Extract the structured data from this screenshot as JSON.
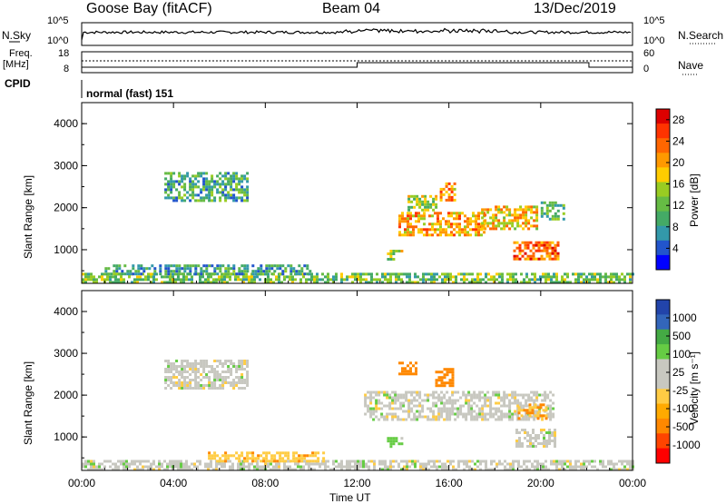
{
  "header": {
    "station": "Goose Bay (fitACF)",
    "beam": "Beam 04",
    "date": "13/Dec/2019"
  },
  "side_labels": {
    "nsky": "N.Sky",
    "freq": "Freq.",
    "mhz": "[MHz]",
    "cpid": "CPID",
    "nsearch": "N.Search",
    "nave": "Nave",
    "cpid_value": "normal (fast) 151"
  },
  "noise_ticks": {
    "left_top": "10^5",
    "left_bottom": "10^0",
    "right_top": "10^5",
    "right_bottom": "10^0"
  },
  "freq_ticks": {
    "left_top": "18",
    "left_bottom": "8",
    "right_top": "60",
    "right_bottom": "0"
  },
  "colors": {
    "power_scale": [
      "#0000ff",
      "#2255cc",
      "#3399aa",
      "#44aa66",
      "#66bb44",
      "#99cc22",
      "#ffcc00",
      "#ff9900",
      "#ff6600",
      "#ff3300",
      "#dd0000"
    ],
    "velocity_scale": [
      "#ff0000",
      "#ff4400",
      "#ff8800",
      "#ffaa00",
      "#ffcc44",
      "#c8c8c0",
      "#c8c8c0",
      "#66cc44",
      "#44aa44",
      "#3366bb",
      "#2244aa"
    ],
    "ground_scatter": "#bebeb6"
  },
  "chart_data": [
    {
      "type": "heatmap",
      "name": "power",
      "ylabel": "Slant Range [km]",
      "yticks": [
        "1000",
        "2000",
        "3000",
        "4000"
      ],
      "ylim": [
        200,
        4500
      ],
      "xlim": [
        0,
        24
      ],
      "colorbar_label": "Power [dB]",
      "colorbar_ticks": [
        "4",
        "8",
        "12",
        "16",
        "20",
        "24",
        "28"
      ],
      "colorbar_range": [
        0,
        30
      ],
      "regions": [
        {
          "t": [
            3.6,
            7.2
          ],
          "r": [
            2150,
            2850
          ],
          "level": 9
        },
        {
          "t": [
            13.3,
            14.1
          ],
          "r": [
            750,
            1000
          ],
          "level": 14
        },
        {
          "t": [
            13.8,
            17.5
          ],
          "r": [
            1350,
            1900
          ],
          "level": 21
        },
        {
          "t": [
            14.2,
            15.4
          ],
          "r": [
            1950,
            2300
          ],
          "level": 14
        },
        {
          "t": [
            15.6,
            16.2
          ],
          "r": [
            2200,
            2600
          ],
          "level": 22
        },
        {
          "t": [
            17.4,
            19.8
          ],
          "r": [
            1500,
            2050
          ],
          "level": 19
        },
        {
          "t": [
            18.8,
            20.8
          ],
          "r": [
            800,
            1200
          ],
          "level": 24
        },
        {
          "t": [
            20.0,
            21.0
          ],
          "r": [
            1700,
            2150
          ],
          "level": 10
        },
        {
          "t": [
            0.0,
            24.0
          ],
          "r": [
            200,
            450
          ],
          "level": 12
        },
        {
          "t": [
            1.0,
            10.0
          ],
          "r": [
            450,
            650
          ],
          "level": 8
        }
      ]
    },
    {
      "type": "heatmap",
      "name": "velocity",
      "ylabel": "Slant Range [km]",
      "xlabel": "Time UT",
      "xticks": [
        "00:00",
        "04:00",
        "08:00",
        "12:00",
        "16:00",
        "20:00",
        "00:00"
      ],
      "yticks": [
        "1000",
        "2000",
        "3000",
        "4000"
      ],
      "ylim": [
        200,
        4500
      ],
      "xlim": [
        0,
        24
      ],
      "colorbar_label": "Velocity [m s⁻¹]",
      "colorbar_ticks": [
        "1000",
        "500",
        "100",
        "25",
        "-25",
        "-100",
        "-500",
        "-1000"
      ],
      "regions": [
        {
          "t": [
            3.6,
            7.2
          ],
          "r": [
            2150,
            2850
          ],
          "vel": 0
        },
        {
          "t": [
            12.3,
            20.5
          ],
          "r": [
            1400,
            2100
          ],
          "vel": 0
        },
        {
          "t": [
            15.4,
            16.2
          ],
          "r": [
            2250,
            2650
          ],
          "vel": -200
        },
        {
          "t": [
            13.8,
            14.6
          ],
          "r": [
            2500,
            2800
          ],
          "vel": -150
        },
        {
          "t": [
            18.9,
            20.6
          ],
          "r": [
            800,
            1200
          ],
          "vel": 0
        },
        {
          "t": [
            19.0,
            20.3
          ],
          "r": [
            1450,
            1800
          ],
          "vel": -100
        },
        {
          "t": [
            13.3,
            14.0
          ],
          "r": [
            750,
            1000
          ],
          "vel": 50
        },
        {
          "t": [
            0.0,
            24.0
          ],
          "r": [
            200,
            450
          ],
          "vel": 0
        },
        {
          "t": [
            5.5,
            10.5
          ],
          "r": [
            450,
            650
          ],
          "vel": -80
        }
      ]
    }
  ],
  "axis": {
    "xlabel": "Time UT"
  }
}
